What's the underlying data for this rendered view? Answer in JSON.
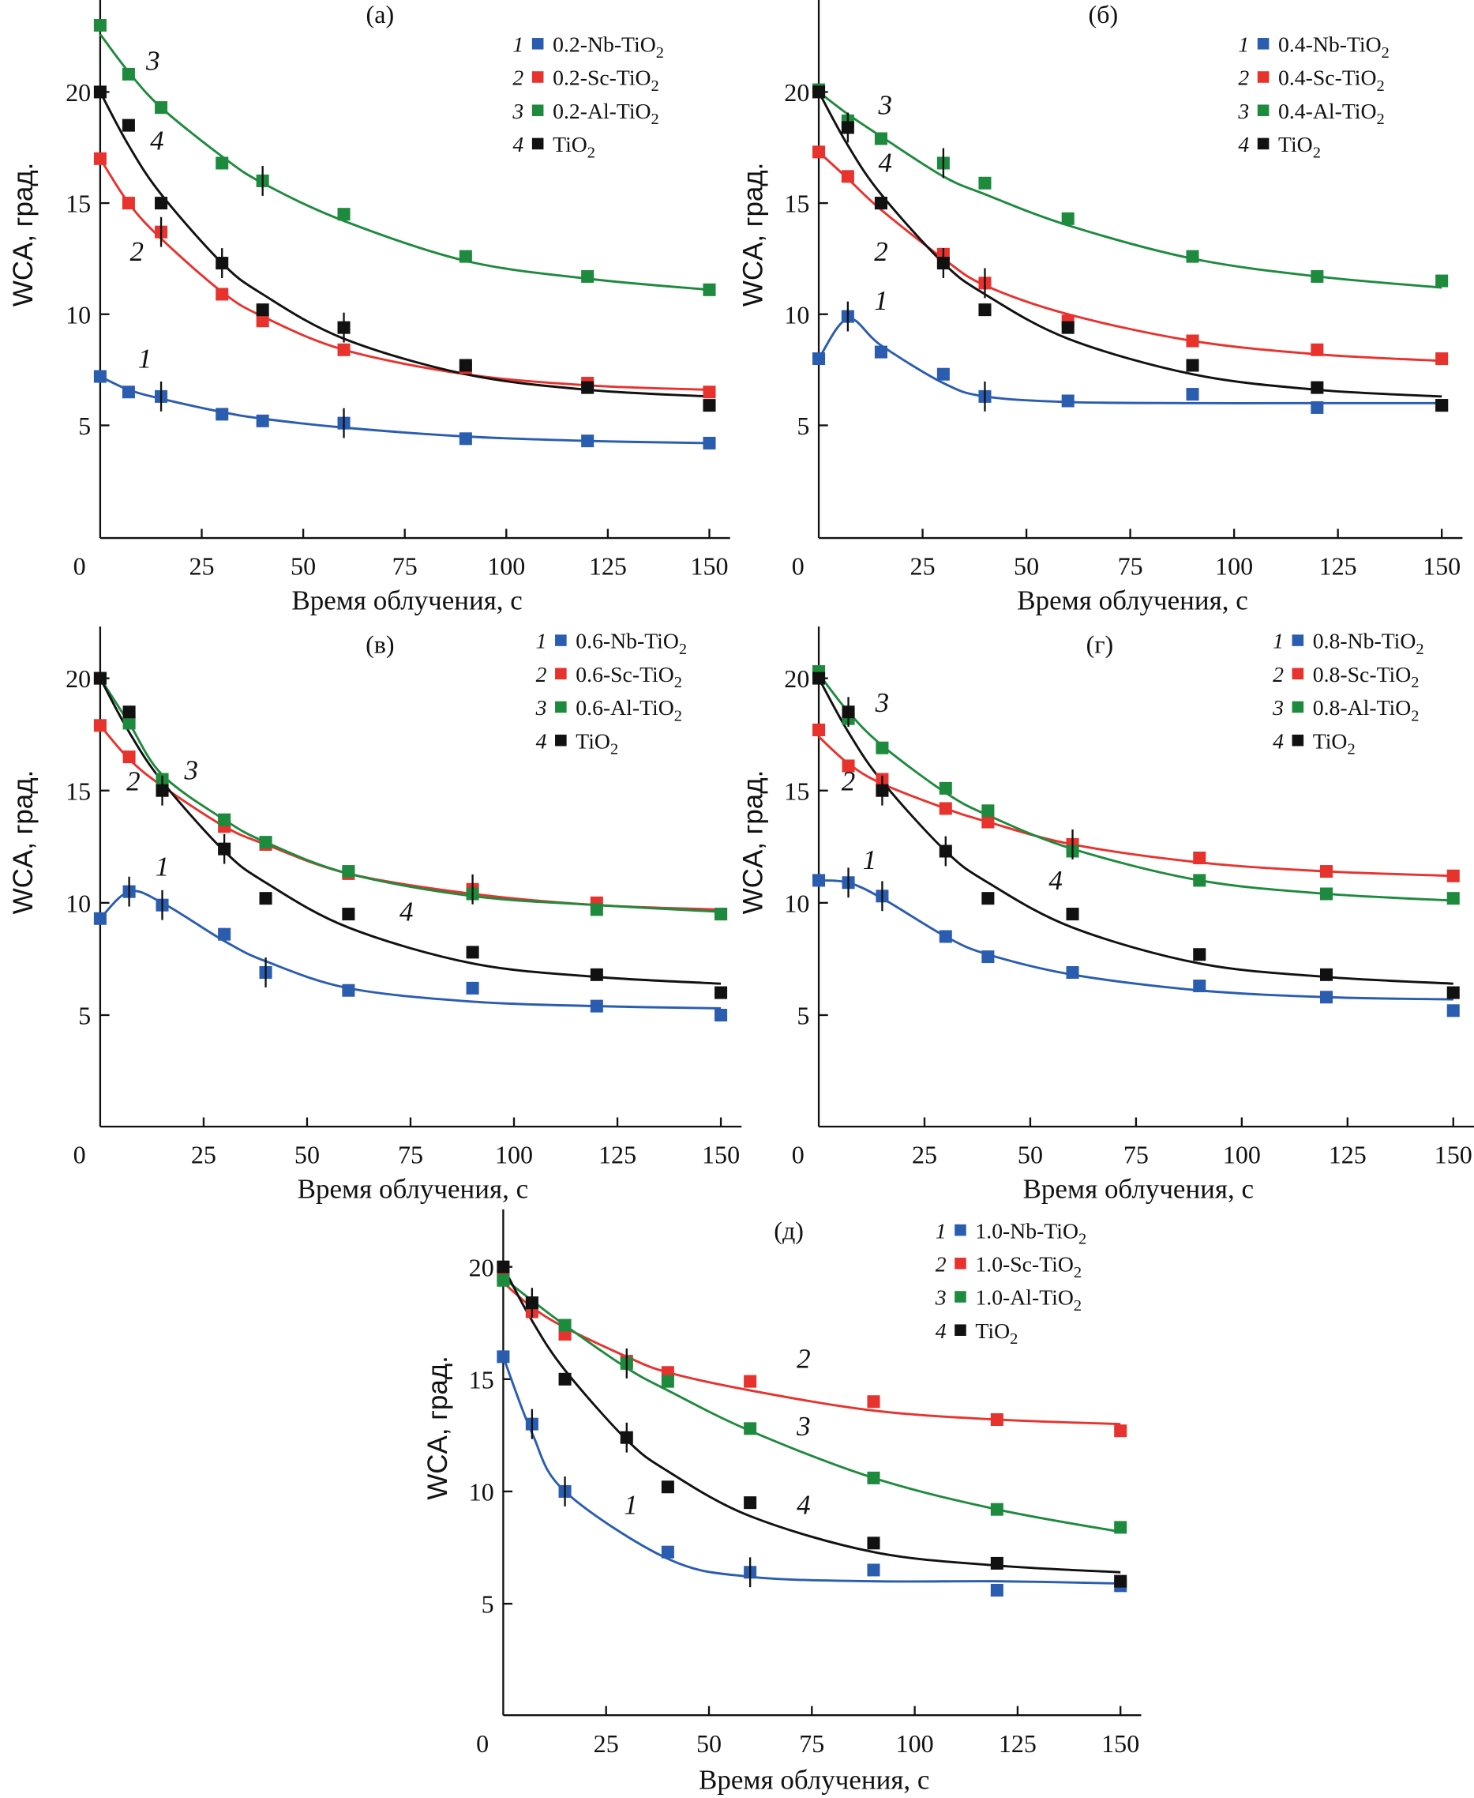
{
  "chart_data": [
    {
      "type": "scatter",
      "panel": "(a)",
      "title": "(a)",
      "xlabel": "Время облучения, с",
      "ylabel": "WCA, град.",
      "xlim": [
        0,
        153
      ],
      "ylim": [
        0,
        24
      ],
      "xticks": [
        0,
        25,
        50,
        75,
        100,
        125,
        150
      ],
      "yticks": [
        5,
        10,
        15,
        20
      ],
      "grid": false,
      "legend_position": "top-right",
      "x": [
        0,
        7,
        15,
        30,
        40,
        60,
        90,
        120,
        150
      ],
      "series": [
        {
          "id": "1",
          "name": "0.2-Nb-TiO2",
          "color": "#2a5db0",
          "values": [
            7.2,
            6.5,
            6.3,
            5.5,
            5.2,
            5.1,
            4.4,
            4.3,
            4.2
          ],
          "fit": [
            7.2,
            6.6,
            6.2,
            5.6,
            5.3,
            4.9,
            4.5,
            4.3,
            4.2
          ],
          "curve_label_at": [
            11,
            7.6
          ]
        },
        {
          "id": "2",
          "name": "0.2-Sc-TiO2",
          "color": "#e8322e",
          "values": [
            17.0,
            15.0,
            13.7,
            10.9,
            9.7,
            8.4,
            7.6,
            6.9,
            6.5
          ],
          "fit": [
            17.0,
            15.0,
            13.4,
            11.0,
            9.9,
            8.4,
            7.3,
            6.8,
            6.6
          ],
          "curve_label_at": [
            9,
            12.4
          ]
        },
        {
          "id": "3",
          "name": "0.2-Al-TiO2",
          "color": "#1e8a3e",
          "values": [
            23.0,
            20.8,
            19.3,
            16.8,
            16.0,
            14.5,
            12.6,
            11.7,
            11.1
          ],
          "fit": [
            22.6,
            20.9,
            19.3,
            17.1,
            15.9,
            14.2,
            12.4,
            11.6,
            11.1
          ],
          "curve_label_at": [
            13,
            21.0
          ]
        },
        {
          "id": "4",
          "name": "TiO2",
          "color": "#111111",
          "values": [
            20.0,
            18.5,
            15.0,
            12.3,
            10.2,
            9.4,
            7.7,
            6.7,
            5.9
          ],
          "fit": [
            20.0,
            17.6,
            15.4,
            12.3,
            10.9,
            8.9,
            7.3,
            6.6,
            6.3
          ],
          "curve_label_at": [
            14,
            17.4
          ]
        }
      ],
      "error_bars_at": [
        [
          "2",
          15
        ],
        [
          "3",
          40
        ],
        [
          "4",
          30
        ],
        [
          "4",
          60
        ],
        [
          "1",
          15
        ],
        [
          "1",
          60
        ]
      ]
    },
    {
      "type": "scatter",
      "panel": "(б)",
      "title": "(б)",
      "xlabel": "Время облучения, с",
      "ylabel": "WCA, град.",
      "xlim": [
        0,
        153
      ],
      "ylim": [
        0,
        24
      ],
      "xticks": [
        0,
        25,
        50,
        75,
        100,
        125,
        150
      ],
      "yticks": [
        5,
        10,
        15,
        20
      ],
      "grid": false,
      "legend_position": "top-right",
      "x": [
        0,
        7,
        15,
        30,
        40,
        60,
        90,
        120,
        150
      ],
      "series": [
        {
          "id": "1",
          "name": "0.4-Nb-TiO2",
          "color": "#2a5db0",
          "values": [
            8.0,
            9.9,
            8.3,
            7.3,
            6.3,
            6.1,
            6.4,
            5.8,
            5.9
          ],
          "fit": [
            8.0,
            9.8,
            8.6,
            6.9,
            6.3,
            6.05,
            6.0,
            6.0,
            6.0
          ],
          "curve_label_at": [
            15,
            10.2
          ]
        },
        {
          "id": "2",
          "name": "0.4-Sc-TiO2",
          "color": "#e8322e",
          "values": [
            17.3,
            16.2,
            15.0,
            12.7,
            11.4,
            9.7,
            8.8,
            8.4,
            8.0
          ],
          "fit": [
            17.3,
            16.1,
            14.7,
            12.5,
            11.3,
            10.0,
            8.8,
            8.2,
            7.9
          ],
          "curve_label_at": [
            15,
            12.4
          ]
        },
        {
          "id": "3",
          "name": "0.4-Al-TiO2",
          "color": "#1e8a3e",
          "values": [
            20.1,
            18.7,
            17.9,
            16.8,
            15.9,
            14.3,
            12.6,
            11.7,
            11.5
          ],
          "fit": [
            20.0,
            19.0,
            18.0,
            16.2,
            15.4,
            14.0,
            12.5,
            11.7,
            11.2
          ],
          "curve_label_at": [
            16,
            19.0
          ]
        },
        {
          "id": "4",
          "name": "TiO2",
          "color": "#111111",
          "values": [
            20.0,
            18.4,
            15.0,
            12.3,
            10.2,
            9.4,
            7.7,
            6.7,
            5.9
          ],
          "fit": [
            20.0,
            17.6,
            15.4,
            12.3,
            10.9,
            8.9,
            7.3,
            6.6,
            6.3
          ],
          "curve_label_at": [
            16,
            16.4
          ]
        }
      ],
      "error_bars_at": [
        [
          "1",
          7
        ],
        [
          "1",
          40
        ],
        [
          "3",
          30
        ],
        [
          "2",
          40
        ],
        [
          "4",
          7
        ],
        [
          "4",
          30
        ]
      ]
    },
    {
      "type": "scatter",
      "panel": "(в)",
      "title": "(в)",
      "xlabel": "Время облучения, с",
      "ylabel": "WCA, град.",
      "xlim": [
        0,
        153
      ],
      "ylim": [
        0,
        23
      ],
      "xticks": [
        0,
        25,
        50,
        75,
        100,
        125,
        150
      ],
      "yticks": [
        5,
        10,
        15,
        20
      ],
      "grid": false,
      "legend_position": "top-right",
      "x": [
        0,
        7,
        15,
        30,
        40,
        60,
        90,
        120,
        150
      ],
      "series": [
        {
          "id": "1",
          "name": "0.6-Nb-TiO2",
          "color": "#2a5db0",
          "values": [
            9.3,
            10.5,
            9.9,
            8.6,
            6.9,
            6.1,
            6.2,
            5.4,
            5.0
          ],
          "fit": [
            9.3,
            10.5,
            10.0,
            8.3,
            7.4,
            6.2,
            5.6,
            5.4,
            5.3
          ],
          "curve_label_at": [
            15,
            11.2
          ]
        },
        {
          "id": "2",
          "name": "0.6-Sc-TiO2",
          "color": "#e8322e",
          "values": [
            17.9,
            16.5,
            15.1,
            13.4,
            12.6,
            11.3,
            10.6,
            10.0,
            9.5
          ],
          "fit": [
            17.9,
            16.4,
            15.2,
            13.4,
            12.6,
            11.3,
            10.4,
            9.9,
            9.7
          ],
          "curve_label_at": [
            8,
            15.0
          ]
        },
        {
          "id": "3",
          "name": "0.6-Al-TiO2",
          "color": "#1e8a3e",
          "values": [
            20.0,
            18.0,
            15.5,
            13.7,
            12.7,
            11.4,
            10.4,
            9.7,
            9.5
          ],
          "fit": [
            20.0,
            18.0,
            15.7,
            13.7,
            12.7,
            11.3,
            10.3,
            9.9,
            9.6
          ],
          "curve_label_at": [
            22,
            15.5
          ]
        },
        {
          "id": "4",
          "name": "TiO2",
          "color": "#111111",
          "values": [
            20.0,
            18.5,
            15.0,
            12.4,
            10.2,
            9.5,
            7.8,
            6.8,
            6.0
          ],
          "fit": [
            20.0,
            17.6,
            15.4,
            12.3,
            10.9,
            8.9,
            7.3,
            6.7,
            6.4
          ],
          "curve_label_at": [
            74,
            9.2
          ]
        }
      ],
      "error_bars_at": [
        [
          "1",
          7
        ],
        [
          "1",
          15
        ],
        [
          "1",
          40
        ],
        [
          "4",
          15
        ],
        [
          "4",
          30
        ],
        [
          "2",
          90
        ]
      ]
    },
    {
      "type": "scatter",
      "panel": "(г)",
      "title": "(г)",
      "xlabel": "Время облучения, с",
      "ylabel": "WCA, град.",
      "xlim": [
        0,
        153
      ],
      "ylim": [
        0,
        23
      ],
      "xticks": [
        0,
        25,
        50,
        75,
        100,
        125,
        150
      ],
      "yticks": [
        5,
        10,
        15,
        20
      ],
      "grid": false,
      "legend_position": "top-right",
      "x": [
        0,
        7,
        15,
        30,
        40,
        60,
        90,
        120,
        150
      ],
      "series": [
        {
          "id": "1",
          "name": "0.8-Nb-TiO2",
          "color": "#2a5db0",
          "values": [
            11.0,
            10.9,
            10.3,
            8.5,
            7.6,
            6.9,
            6.3,
            5.8,
            5.2
          ],
          "fit": [
            11.0,
            10.9,
            10.2,
            8.5,
            7.7,
            6.8,
            6.1,
            5.8,
            5.7
          ],
          "curve_label_at": [
            12,
            11.5
          ]
        },
        {
          "id": "2",
          "name": "0.8-Sc-TiO2",
          "color": "#e8322e",
          "values": [
            17.7,
            16.1,
            15.5,
            14.2,
            13.6,
            12.6,
            12.0,
            11.4,
            11.2
          ],
          "fit": [
            17.4,
            16.2,
            15.3,
            14.2,
            13.6,
            12.6,
            11.8,
            11.4,
            11.2
          ],
          "curve_label_at": [
            7,
            15.0
          ]
        },
        {
          "id": "3",
          "name": "0.8-Al-TiO2",
          "color": "#1e8a3e",
          "values": [
            20.3,
            18.2,
            16.9,
            15.1,
            14.1,
            12.3,
            11.0,
            10.4,
            10.2
          ],
          "fit": [
            20.2,
            18.5,
            17.0,
            14.9,
            13.9,
            12.4,
            11.0,
            10.4,
            10.1
          ],
          "curve_label_at": [
            15,
            18.5
          ]
        },
        {
          "id": "4",
          "name": "TiO2",
          "color": "#111111",
          "values": [
            20.0,
            18.5,
            15.0,
            12.3,
            10.2,
            9.5,
            7.7,
            6.8,
            6.0
          ],
          "fit": [
            20.0,
            17.6,
            15.4,
            12.3,
            10.9,
            8.9,
            7.3,
            6.7,
            6.4
          ],
          "curve_label_at": [
            56,
            10.6
          ]
        }
      ],
      "error_bars_at": [
        [
          "1",
          7
        ],
        [
          "1",
          15
        ],
        [
          "4",
          7
        ],
        [
          "4",
          15
        ],
        [
          "4",
          30
        ],
        [
          "2",
          60
        ]
      ]
    },
    {
      "type": "scatter",
      "panel": "(д)",
      "title": "(д)",
      "xlabel": "Время облучения, с",
      "ylabel": "WCA, град.",
      "xlim": [
        0,
        153
      ],
      "ylim": [
        0,
        23
      ],
      "xticks": [
        0,
        25,
        50,
        75,
        100,
        125,
        150
      ],
      "yticks": [
        5,
        10,
        15,
        20
      ],
      "grid": false,
      "legend_position": "top-right",
      "x": [
        0,
        7,
        15,
        30,
        40,
        60,
        90,
        120,
        150
      ],
      "series": [
        {
          "id": "1",
          "name": "1.0-Nb-TiO2",
          "color": "#2a5db0",
          "values": [
            16.0,
            13.0,
            10.0,
            null,
            7.3,
            6.4,
            6.5,
            5.6,
            5.8
          ],
          "fit": [
            16.0,
            12.6,
            10.0,
            null,
            7.0,
            6.2,
            6.0,
            6.0,
            5.9
          ],
          "curve_label_at": [
            31,
            9.0
          ]
        },
        {
          "id": "2",
          "name": "1.0-Sc-TiO2",
          "color": "#e8322e",
          "values": [
            19.6,
            18.0,
            17.0,
            15.8,
            15.3,
            14.9,
            14.0,
            13.2,
            12.7
          ],
          "fit": [
            19.3,
            18.2,
            17.3,
            16.0,
            15.3,
            14.5,
            13.6,
            13.2,
            13.0
          ],
          "curve_label_at": [
            73,
            15.5
          ]
        },
        {
          "id": "3",
          "name": "1.0-Al-TiO2",
          "color": "#1e8a3e",
          "values": [
            19.4,
            18.4,
            17.4,
            15.7,
            14.9,
            12.8,
            10.6,
            9.2,
            8.4
          ],
          "fit": [
            19.5,
            18.5,
            17.4,
            15.5,
            14.5,
            12.7,
            10.6,
            9.2,
            8.2
          ],
          "curve_label_at": [
            73,
            12.5
          ]
        },
        {
          "id": "4",
          "name": "TiO2",
          "color": "#111111",
          "values": [
            20.0,
            18.4,
            15.0,
            12.4,
            10.2,
            9.5,
            7.7,
            6.8,
            6.0
          ],
          "fit": [
            20.0,
            17.6,
            15.4,
            12.3,
            10.9,
            8.9,
            7.3,
            6.7,
            6.4
          ],
          "curve_label_at": [
            73,
            9.0
          ]
        }
      ],
      "error_bars_at": [
        [
          "1",
          7
        ],
        [
          "1",
          15
        ],
        [
          "1",
          60
        ],
        [
          "4",
          7
        ],
        [
          "4",
          30
        ],
        [
          "3",
          30
        ]
      ]
    }
  ],
  "labels": {
    "panel_a": "(а)",
    "panel_b": "(б)",
    "panel_c": "(в)",
    "panel_d": "(г)",
    "panel_e": "(д)",
    "xlabel": "Время облучения, с",
    "ylabel": "WCA, град."
  }
}
